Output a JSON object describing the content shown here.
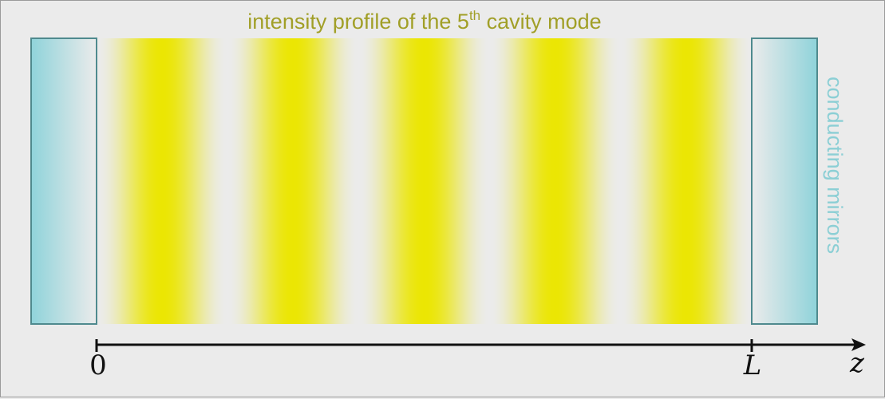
{
  "title": {
    "prefix": "intensity profile of the 5",
    "sup": "th",
    "suffix": " cavity mode"
  },
  "side_label": "conducting mirrors",
  "axis": {
    "origin_label": "0",
    "end_label": "L",
    "variable": "z"
  },
  "mode": {
    "number": 5
  },
  "colors": {
    "background": "#ebebeb",
    "mirror": "#8fd3da",
    "mirror_border": "#4f8a8e",
    "antinode": "#ebe603",
    "title": "#a19f27",
    "side_label": "#8ccfd5",
    "axis": "#111111"
  }
}
